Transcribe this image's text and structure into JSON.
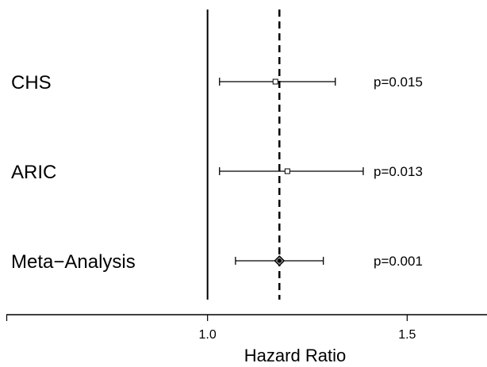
{
  "chart_data": {
    "type": "forest",
    "xlabel": "Hazard Ratio",
    "x_ticks": [
      1.0,
      1.5
    ],
    "x_tick_labels": [
      "1.0",
      "1.5"
    ],
    "xlim": [
      0.5,
      1.7
    ],
    "null_line": 1.0,
    "pooled_estimate_line": 1.18,
    "studies": [
      {
        "label": "CHS",
        "estimate": 1.17,
        "lower": 1.03,
        "upper": 1.32,
        "p_label": "p=0.015",
        "marker": "square"
      },
      {
        "label": "ARIC",
        "estimate": 1.2,
        "lower": 1.03,
        "upper": 1.39,
        "p_label": "p=0.013",
        "marker": "square"
      },
      {
        "label": "Meta−Analysis",
        "estimate": 1.18,
        "lower": 1.07,
        "upper": 1.29,
        "p_label": "p=0.001",
        "marker": "diamond"
      }
    ]
  }
}
